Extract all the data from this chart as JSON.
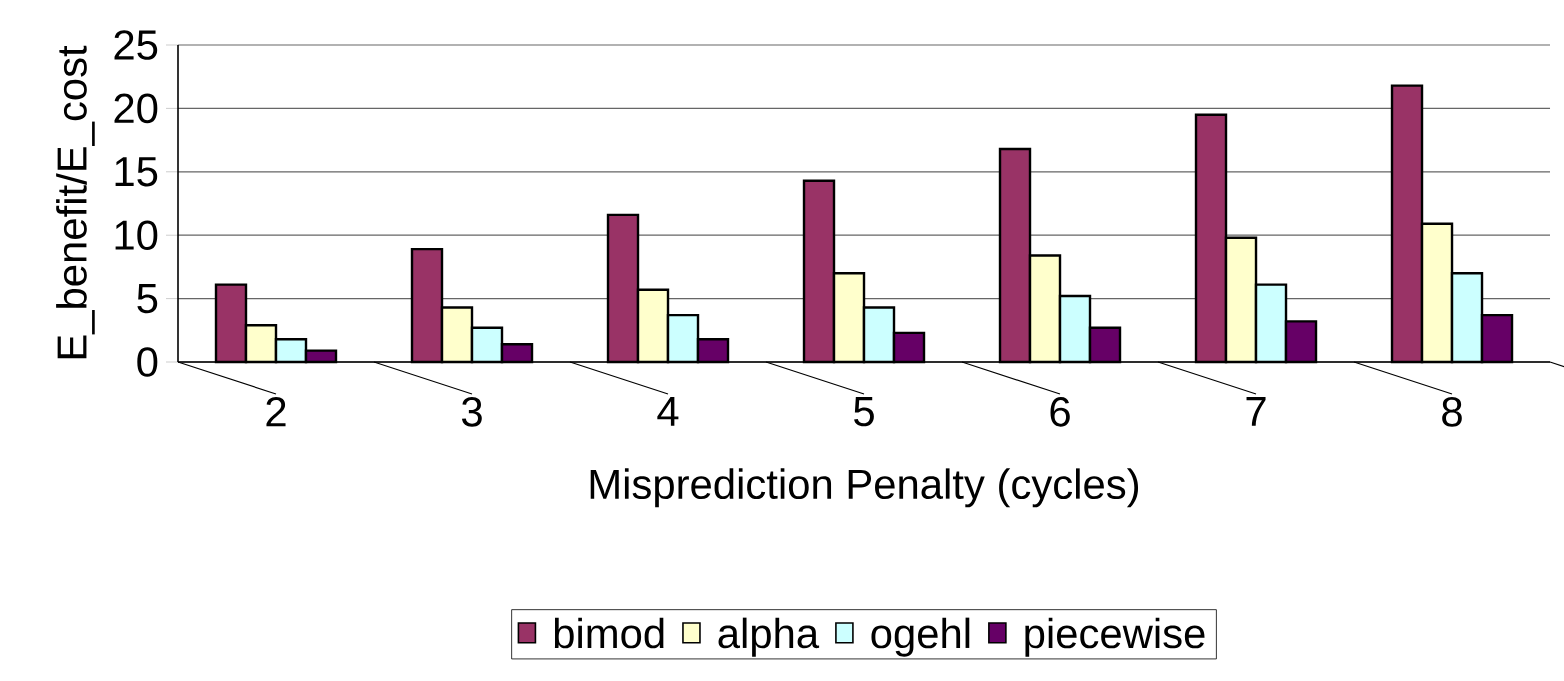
{
  "chart_data": {
    "type": "bar",
    "xlabel": "Misprediction Penalty (cycles)",
    "ylabel": "E_benefit/E_cost",
    "categories": [
      "2",
      "3",
      "4",
      "5",
      "6",
      "7",
      "8"
    ],
    "series": [
      {
        "name": "bimod",
        "color": "#993366",
        "values": [
          6.1,
          8.9,
          11.6,
          14.3,
          16.8,
          19.5,
          21.8
        ]
      },
      {
        "name": "alpha",
        "color": "#ffffcc",
        "values": [
          2.9,
          4.3,
          5.7,
          7.0,
          8.4,
          9.8,
          10.9
        ]
      },
      {
        "name": "ogehl",
        "color": "#ccffff",
        "values": [
          1.8,
          2.7,
          3.7,
          4.3,
          5.2,
          6.1,
          7.0
        ]
      },
      {
        "name": "piecewise",
        "color": "#660066",
        "values": [
          0.9,
          1.4,
          1.8,
          2.3,
          2.7,
          3.2,
          3.7
        ]
      }
    ],
    "ylim": [
      0,
      25
    ],
    "yticks": [
      0,
      5,
      10,
      15,
      20,
      25
    ],
    "grid": "y",
    "legend": "bottom"
  }
}
